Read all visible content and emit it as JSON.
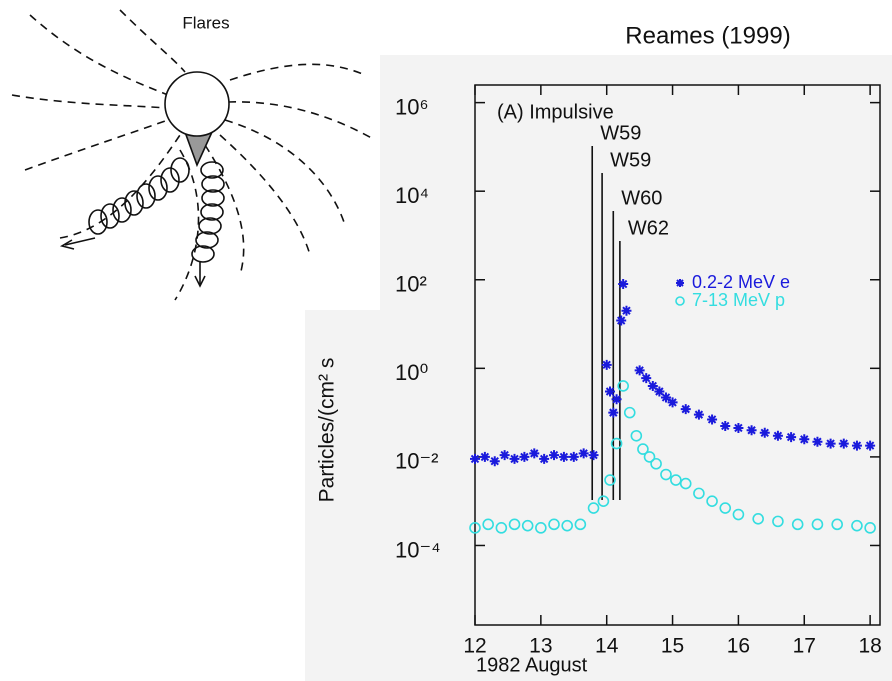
{
  "chart_data": {
    "type": "scatter",
    "title": "Reames (1999)",
    "diagram_label": "Flares",
    "panel_label": "(A) Impulsive",
    "x_label": "1982 August",
    "y_label": "Particles/(cm² s",
    "log_y": true,
    "legend": "right",
    "xlim": [
      12,
      18.15
    ],
    "xticks": [
      12,
      13,
      14,
      15,
      16,
      17,
      18
    ],
    "ylim": [
      1.6e-06,
      2500000
    ],
    "yticks": [
      {
        "value": 1000000,
        "label": "10⁶"
      },
      {
        "value": 10000,
        "label": "10⁴"
      },
      {
        "value": 100,
        "label": "10²"
      },
      {
        "value": 1,
        "label": "10⁰"
      },
      {
        "value": 0.01,
        "label": "10⁻²"
      },
      {
        "value": 0.0001,
        "label": "10⁻⁴"
      }
    ],
    "annotations": [
      {
        "text": "W59",
        "x": 13.78
      },
      {
        "text": "W59",
        "x": 13.93
      },
      {
        "text": "W60",
        "x": 14.1
      },
      {
        "text": "W62",
        "x": 14.2
      }
    ],
    "series": [
      {
        "name": "0.2-2 MeV e",
        "color": "#1a1adc",
        "marker": "asterisk",
        "x": [
          12.0,
          12.15,
          12.3,
          12.45,
          12.6,
          12.75,
          12.9,
          13.05,
          13.2,
          13.35,
          13.5,
          13.65,
          13.8,
          14.0,
          14.05,
          14.1,
          14.15,
          14.22,
          14.25,
          14.3,
          14.5,
          14.6,
          14.7,
          14.8,
          14.9,
          15.0,
          15.2,
          15.4,
          15.6,
          15.8,
          16.0,
          16.2,
          16.4,
          16.6,
          16.8,
          17.0,
          17.2,
          17.4,
          17.6,
          17.8,
          18.0
        ],
        "values": [
          0.009,
          0.01,
          0.008,
          0.011,
          0.009,
          0.01,
          0.012,
          0.009,
          0.011,
          0.01,
          0.01,
          0.012,
          0.011,
          1.2,
          0.3,
          0.1,
          0.2,
          12,
          80,
          20,
          0.9,
          0.6,
          0.4,
          0.3,
          0.22,
          0.17,
          0.12,
          0.09,
          0.07,
          0.05,
          0.045,
          0.04,
          0.035,
          0.03,
          0.028,
          0.025,
          0.022,
          0.02,
          0.02,
          0.018,
          0.018
        ]
      },
      {
        "name": "7-13 MeV p",
        "color": "#33dde0",
        "marker": "circle",
        "x": [
          12.0,
          12.2,
          12.4,
          12.6,
          12.8,
          13.0,
          13.2,
          13.4,
          13.6,
          13.8,
          13.95,
          14.05,
          14.15,
          14.25,
          14.35,
          14.45,
          14.55,
          14.65,
          14.75,
          14.9,
          15.05,
          15.2,
          15.4,
          15.6,
          15.8,
          16.0,
          16.3,
          16.6,
          16.9,
          17.2,
          17.5,
          17.8,
          18.0
        ],
        "values": [
          0.00025,
          0.0003,
          0.00025,
          0.0003,
          0.00028,
          0.00025,
          0.0003,
          0.00028,
          0.0003,
          0.0007,
          0.001,
          0.003,
          0.02,
          0.4,
          0.1,
          0.03,
          0.015,
          0.01,
          0.007,
          0.004,
          0.003,
          0.0025,
          0.0015,
          0.001,
          0.0007,
          0.0005,
          0.0004,
          0.00035,
          0.0003,
          0.0003,
          0.0003,
          0.00028,
          0.00025
        ]
      }
    ]
  }
}
